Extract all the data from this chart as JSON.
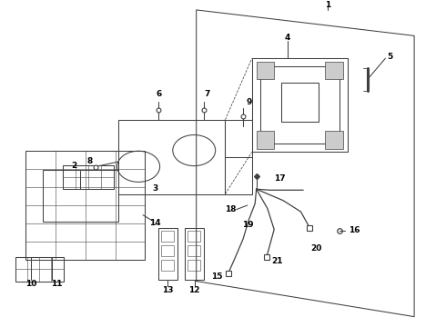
{
  "bg_color": "#ffffff",
  "line_color": "#404040",
  "label_fontsize": 6.5,
  "figsize": [
    4.9,
    3.6
  ],
  "dpi": 100
}
